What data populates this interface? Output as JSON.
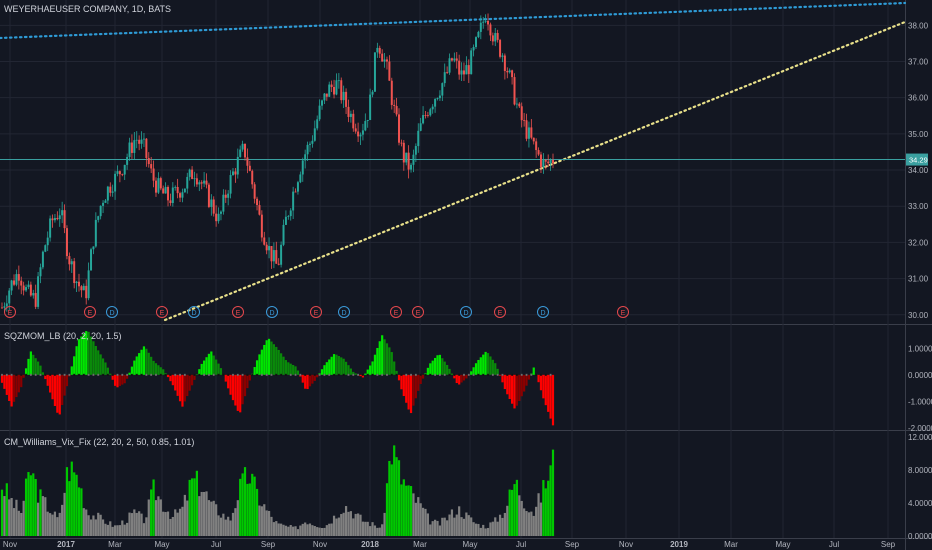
{
  "header": {
    "symbol_title": "WEYERHAEUSER COMPANY, 1D, BATS"
  },
  "colors": {
    "background": "#131722",
    "grid": "#222633",
    "up_candle": "#26a69a",
    "down_candle": "#ef5350",
    "upper_trendline": "#2e9bd6",
    "lower_trendline": "#e8e08a",
    "price_line": "#3aa0a0",
    "squeeze_pos_strong": "#00e600",
    "squeeze_pos_weak": "#0a8a0a",
    "squeeze_neg_strong": "#ff0000",
    "squeeze_neg_weak": "#8b0000",
    "vix_high": "#00c800",
    "vix_normal": "#808080"
  },
  "panels": {
    "price": {
      "axis_labels": [
        "38.00",
        "37.00",
        "36.00",
        "35.00",
        "34.00",
        "33.00",
        "32.00",
        "31.00",
        "30.00"
      ],
      "current_price_label": "34.29",
      "event_markers": [
        "E",
        "E",
        "D",
        "E",
        "D",
        "E",
        "D",
        "E",
        "D",
        "E",
        "E",
        "D",
        "E",
        "D",
        "E",
        "E"
      ]
    },
    "squeeze": {
      "title": "SQZMOM_LB (20, 2, 20, 1.5)",
      "axis_labels": [
        "1.0000",
        "0.0000",
        "-1.0000",
        "-2.0000"
      ]
    },
    "vix": {
      "title": "CM_Williams_Vix_Fix (22, 20, 2, 50, 0.85, 1.01)",
      "axis_labels": [
        "12.0000",
        "8.0000",
        "4.0000",
        "0.0000"
      ]
    }
  },
  "time_axis": [
    "Nov",
    "2017",
    "Mar",
    "May",
    "Jul",
    "Sep",
    "Nov",
    "2018",
    "Mar",
    "May",
    "Jul",
    "Sep",
    "Nov",
    "2019",
    "Mar",
    "May",
    "Jul",
    "Sep"
  ],
  "chart_data": [
    {
      "type": "candlestick",
      "title": "WEYERHAEUSER COMPANY, 1D, BATS",
      "ylim": [
        29.8,
        38.7
      ],
      "last_price": 34.29,
      "approx_path": [
        30.2,
        30.8,
        31.2,
        30.6,
        30.4,
        31.8,
        32.6,
        32.9,
        31.6,
        30.9,
        30.5,
        32.2,
        33.2,
        33.6,
        33.9,
        34.4,
        34.9,
        34.6,
        33.8,
        33.4,
        33.2,
        33.4,
        33.6,
        34.0,
        33.6,
        33.1,
        32.6,
        33.5,
        34.1,
        34.6,
        33.6,
        32.5,
        31.8,
        31.3,
        32.6,
        33.5,
        34.3,
        34.8,
        35.6,
        36.2,
        36.4,
        35.9,
        35.4,
        35.1,
        35.7,
        37.6,
        36.9,
        35.6,
        34.4,
        34.0,
        35.1,
        35.7,
        36.1,
        36.5,
        37.1,
        36.6,
        36.9,
        37.6,
        38.4,
        37.6,
        37.2,
        36.4,
        35.5,
        35.0,
        34.5,
        34.1,
        34.3
      ]
    },
    {
      "type": "bar",
      "title": "SQZMOM_LB (20, 2, 20, 1.5)",
      "ylim": [
        -2,
        1.8
      ],
      "approx_values": [
        -0.3,
        -1.2,
        -0.5,
        0.9,
        0.4,
        -0.6,
        -1.6,
        -0.2,
        1.3,
        1.7,
        1.0,
        0.4,
        -0.5,
        -0.3,
        0.6,
        1.1,
        0.5,
        0.2,
        -0.4,
        -1.2,
        -0.4,
        0.4,
        0.9,
        0.3,
        -0.7,
        -1.5,
        -0.3,
        0.7,
        1.4,
        1.0,
        0.5,
        0.3,
        -0.6,
        -0.2,
        0.4,
        0.8,
        0.6,
        0.1,
        -0.1,
        0.5,
        1.5,
        0.9,
        -0.5,
        -1.5,
        -0.4,
        0.4,
        0.8,
        0.3,
        -0.4,
        -0.1,
        0.5,
        0.9,
        0.4,
        -0.6,
        -1.3,
        -0.6,
        0.3,
        -0.9,
        -1.9
      ]
    },
    {
      "type": "bar",
      "title": "CM_Williams_Vix_Fix (22, 20, 2, 50, 0.85, 1.01)",
      "ylim": [
        0,
        12.5
      ],
      "approx_values": [
        6.5,
        4.5,
        3.0,
        8.5,
        5.0,
        3.5,
        2.0,
        9.0,
        7.5,
        3.0,
        2.5,
        1.8,
        1.2,
        2.0,
        3.0,
        2.0,
        6.0,
        4.0,
        2.5,
        3.5,
        7.0,
        6.5,
        4.0,
        3.0,
        2.0,
        6.0,
        8.0,
        5.0,
        3.0,
        1.5,
        1.2,
        1.0,
        2.0,
        1.5,
        1.2,
        2.5,
        4.0,
        3.0,
        2.0,
        1.5,
        1.0,
        11.5,
        7.5,
        5.5,
        4.0,
        2.0,
        1.5,
        2.5,
        3.5,
        2.5,
        1.5,
        1.2,
        2.0,
        3.5,
        7.0,
        4.5,
        3.0,
        6.0,
        9.5
      ]
    }
  ]
}
